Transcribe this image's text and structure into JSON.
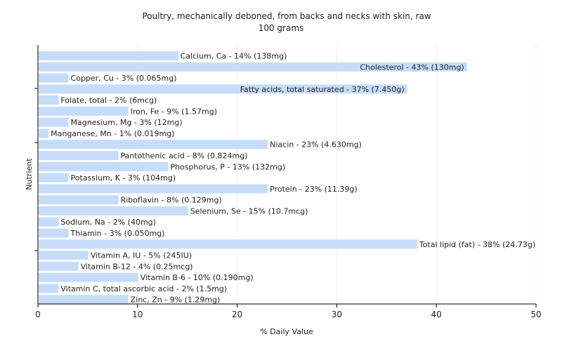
{
  "chart_data": {
    "type": "bar",
    "orientation": "horizontal",
    "title": "Poultry, mechanically deboned, from backs and necks with skin, raw",
    "subtitle": "100 grams",
    "xlabel": "% Daily Value",
    "ylabel": "Nutrient",
    "xlim": [
      0,
      50
    ],
    "xticks": [
      "0",
      "10",
      "20",
      "30",
      "40",
      "50"
    ],
    "grid": true,
    "bar_color": "#c6dcfa",
    "categories": [
      "Calcium, Ca",
      "Cholesterol",
      "Copper, Cu",
      "Fatty acids, total saturated",
      "Folate, total",
      "Iron, Fe",
      "Magnesium, Mg",
      "Manganese, Mn",
      "Niacin",
      "Pantothenic acid",
      "Phosphorus, P",
      "Potassium, K",
      "Protein",
      "Riboflavin",
      "Selenium, Se",
      "Sodium, Na",
      "Thiamin",
      "Total lipid (fat)",
      "Vitamin A, IU",
      "Vitamin B-12",
      "Vitamin B-6",
      "Vitamin C, total ascorbic acid",
      "Zinc, Zn"
    ],
    "values": [
      14,
      43,
      3,
      37,
      2,
      9,
      3,
      1,
      23,
      8,
      13,
      3,
      23,
      8,
      15,
      2,
      3,
      38,
      5,
      4,
      10,
      2,
      9
    ],
    "labels": [
      "Calcium, Ca - 14% (138mg)",
      "Cholesterol - 43% (130mg)",
      "Copper, Cu - 3% (0.065mg)",
      "Fatty acids, total saturated - 37% (7.450g)",
      "Folate, total - 2% (6mcg)",
      "Iron, Fe - 9% (1.57mg)",
      "Magnesium, Mg - 3% (12mg)",
      "Manganese, Mn - 1% (0.019mg)",
      "Niacin - 23% (4.630mg)",
      "Pantothenic acid - 8% (0.824mg)",
      "Phosphorus, P - 13% (132mg)",
      "Potassium, K - 3% (104mg)",
      "Protein - 23% (11.39g)",
      "Riboflavin - 8% (0.129mg)",
      "Selenium, Se - 15% (10.7mcg)",
      "Sodium, Na - 2% (40mg)",
      "Thiamin - 3% (0.050mg)",
      "Total lipid (fat) - 38% (24.73g)",
      "Vitamin A, IU - 5% (245IU)",
      "Vitamin B-12 - 4% (0.25mcg)",
      "Vitamin B-6 - 10% (0.190mg)",
      "Vitamin C, total ascorbic acid - 2% (1.5mg)",
      "Zinc, Zn - 9% (1.29mg)"
    ]
  }
}
